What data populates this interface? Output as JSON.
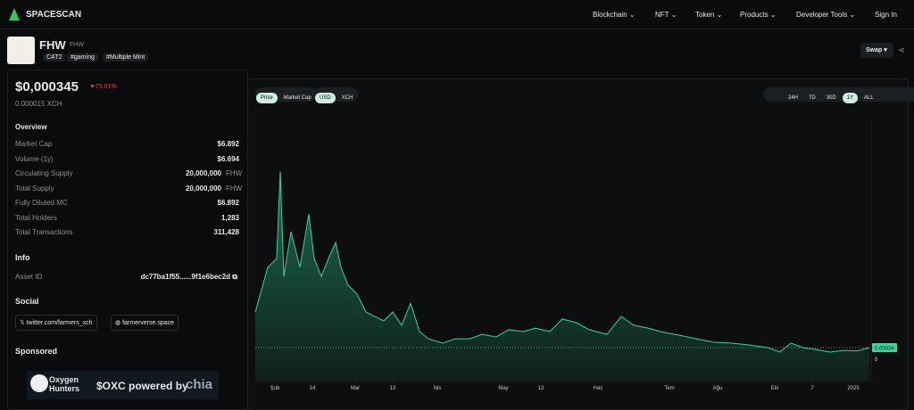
{
  "nav": {
    "brand": "SPACESCAN",
    "items": [
      "Blockchain",
      "NFT",
      "Token",
      "Products",
      "Developer Tools"
    ],
    "sign_in": "Sign In"
  },
  "token": {
    "name": "FHW",
    "ticker": "FHW",
    "tags": [
      "CAT2",
      "#gaming",
      "#Multiple Mint"
    ],
    "swap": "Swap"
  },
  "price": {
    "usd": "$0,000345",
    "change": "75.01%",
    "xch": "0.000015",
    "xch_unit": "XCH"
  },
  "overview": {
    "title": "Overview",
    "rows": [
      [
        "Market Cap",
        "$6.892"
      ],
      [
        "Volume (1y)",
        "$6.694"
      ],
      [
        "Circulating Supply",
        "20,000,000",
        "FHW"
      ],
      [
        "Total Supply",
        "20,000,000",
        "FHW"
      ],
      [
        "Fully Diluted MC",
        "$6.892"
      ],
      [
        "Total Holders",
        "1,283"
      ],
      [
        "Total Transactions",
        "311,428"
      ]
    ]
  },
  "info": {
    "title": "Info",
    "rows": [
      [
        "Asset ID",
        "dc77ba1f55......9f1e6bec2d"
      ]
    ]
  },
  "social": {
    "title": "Social",
    "links": [
      "twitter.com/farmers_xch",
      "farmerverse.space"
    ]
  },
  "sponsored": {
    "title": "Sponsored",
    "brand": [
      "Oxygen",
      "Hunters"
    ],
    "text": "$OXC powered by",
    "chia": "chia"
  },
  "chart_controls": {
    "metric": [
      "Price",
      "Market Cap"
    ],
    "currency": [
      "USD",
      "XCH"
    ],
    "ranges": [
      "24H",
      "7D",
      "30D",
      "1Y",
      "ALL"
    ]
  },
  "chart": {
    "type": "area",
    "color": "#3ed39a",
    "x": [
      0,
      7,
      12,
      14,
      16,
      20,
      25,
      30,
      33,
      37,
      41,
      45,
      48,
      52,
      57,
      62,
      67,
      72,
      77,
      82,
      87,
      92,
      97,
      105,
      112,
      120,
      127,
      135,
      142,
      150,
      157,
      165,
      172,
      180,
      187,
      197,
      205,
      212,
      220,
      227,
      237,
      247,
      257,
      267,
      277,
      287,
      294,
      300,
      307,
      314,
      322,
      330,
      337,
      344
    ],
    "values": [
      0.00147,
      0.00289,
      0.00317,
      0.00594,
      0.0026,
      0.00402,
      0.00289,
      0.00458,
      0.00317,
      0.0026,
      0.00317,
      0.00368,
      0.00289,
      0.00232,
      0.00204,
      0.00147,
      0.00133,
      0.00119,
      0.00147,
      0.00105,
      0.00175,
      0.00085,
      0.00062,
      0.00048,
      0.00062,
      0.00062,
      0.00076,
      0.00068,
      0.00091,
      0.00085,
      0.00096,
      0.00085,
      0.00125,
      0.00113,
      0.00091,
      0.00076,
      0.00133,
      0.00105,
      0.00096,
      0.00085,
      0.00074,
      0.00062,
      0.00051,
      0.00048,
      0.00042,
      0.00034,
      0.0002,
      0.00048,
      0.00034,
      0.00028,
      0.0002,
      0.00025,
      0.00023,
      0.00034
    ],
    "xlim": [
      0,
      345
    ],
    "xticks": [
      {
        "value": 11,
        "label": "Şub"
      },
      {
        "value": 32,
        "label": "14"
      },
      {
        "value": 56,
        "label": "Mar"
      },
      {
        "value": 77,
        "label": "13"
      },
      {
        "value": 102,
        "label": "Nis"
      },
      {
        "value": 139,
        "label": "May"
      },
      {
        "value": 160,
        "label": "13"
      },
      {
        "value": 192,
        "label": "Haz"
      },
      {
        "value": 232,
        "label": "Tem"
      },
      {
        "value": 259,
        "label": "Ağu"
      },
      {
        "value": 291,
        "label": "Eki"
      },
      {
        "value": 312,
        "label": "7"
      },
      {
        "value": 335,
        "label": "2025"
      }
    ],
    "ylim": [
      0,
      0.00756
    ],
    "yticks": [
      0
    ],
    "current": {
      "value": 0.00034,
      "label": "0.00034"
    }
  }
}
